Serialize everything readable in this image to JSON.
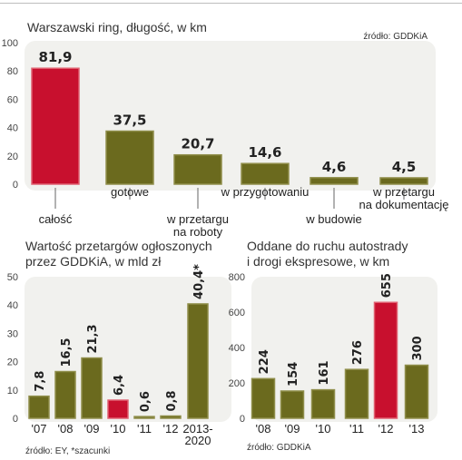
{
  "colors": {
    "bar": "#6b6a1e",
    "bar_stroke": "#8f8e4a",
    "highlight": "#c8102e",
    "highlight_stroke": "#e06070",
    "panel_bg": "#f1f1ee",
    "tick_text": "#444444"
  },
  "chart_data": [
    {
      "type": "bar",
      "title": "Warszawski ring, długość, w km",
      "source": "źródło: GDDKiA",
      "categories": [
        "całość",
        "gotowe",
        "w przetargu na roboty",
        "w przygotowaniu",
        "w budowie",
        "w przetargu na dokumentację"
      ],
      "category_lines": [
        [
          "całość"
        ],
        [
          "gotowe"
        ],
        [
          "w przetargu",
          "na roboty"
        ],
        [
          "w przygotowaniu"
        ],
        [
          "w budowie"
        ],
        [
          "w przetargu",
          "na dokumentację"
        ]
      ],
      "values": [
        81.9,
        37.5,
        20.7,
        14.6,
        4.6,
        4.5
      ],
      "value_labels": [
        "81,9",
        "37,5",
        "20,7",
        "14,6",
        "4,6",
        "4,5"
      ],
      "highlight_index": 0,
      "ylim": [
        0,
        100
      ],
      "yticks": [
        0,
        20,
        40,
        60,
        80,
        100
      ],
      "grid": false
    },
    {
      "type": "bar",
      "title_lines": [
        "Wartość przetargów ogłoszonych",
        "przez GDDKiA, w mld zł"
      ],
      "source": "źródło: EY, *szacunki",
      "categories": [
        "'07",
        "'08",
        "'09",
        "'10",
        "'11",
        "'12",
        "2013-2020"
      ],
      "category_lines": [
        [
          "'07"
        ],
        [
          "'08"
        ],
        [
          "'09"
        ],
        [
          "'10"
        ],
        [
          "'11"
        ],
        [
          "'12"
        ],
        [
          "2013-",
          "2020"
        ]
      ],
      "values": [
        7.8,
        16.5,
        21.3,
        6.4,
        0.6,
        0.8,
        40.4
      ],
      "value_labels": [
        "7,8",
        "16,5",
        "21,3",
        "6,4",
        "0,6",
        "0,8",
        "40,4*"
      ],
      "highlight_index": 3,
      "ylim": [
        0,
        50
      ],
      "yticks": [
        0,
        10,
        20,
        30,
        40,
        50
      ],
      "grid": false
    },
    {
      "type": "bar",
      "title_lines": [
        "Oddane do ruchu autostrady",
        "i drogi ekspresowe, w km"
      ],
      "source": "źródło: GDDKiA",
      "categories": [
        "'08",
        "'09",
        "'10",
        "'11",
        "'12",
        "'13"
      ],
      "category_lines": [
        [
          "'08"
        ],
        [
          "'09"
        ],
        [
          "'10"
        ],
        [
          "'11"
        ],
        [
          "'12"
        ],
        [
          "'13"
        ]
      ],
      "values": [
        224,
        154,
        161,
        276,
        655,
        300
      ],
      "value_labels": [
        "224",
        "154",
        "161",
        "276",
        "655",
        "300"
      ],
      "highlight_index": 4,
      "ylim": [
        0,
        800
      ],
      "yticks": [
        0,
        200,
        400,
        600,
        800
      ],
      "grid": false
    }
  ]
}
